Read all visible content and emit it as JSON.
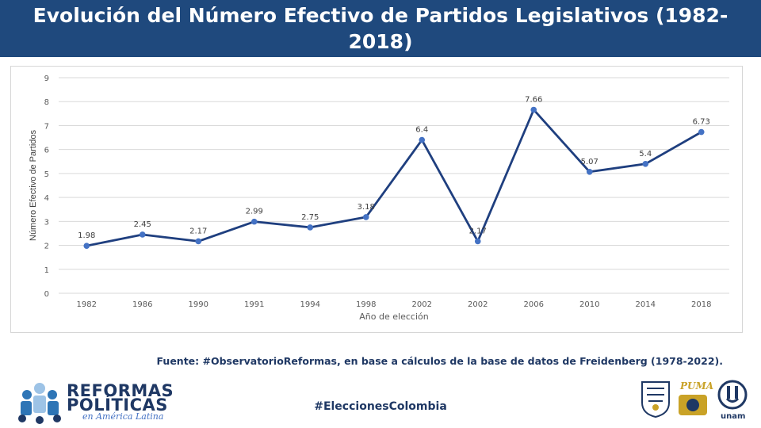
{
  "header": {
    "title": "Evolución del Número Efectivo de Partidos Legislativos (1982-2018)"
  },
  "chart_data": {
    "type": "line",
    "title": "",
    "xlabel": "Año de elección",
    "ylabel": "Número Efectivo de Partidos",
    "ylim": [
      0,
      9
    ],
    "yticks": [
      0,
      1,
      2,
      3,
      4,
      5,
      6,
      7,
      8,
      9
    ],
    "grid": true,
    "categories": [
      "1982",
      "1986",
      "1990",
      "1991",
      "1994",
      "1998",
      "2002",
      "2002",
      "2006",
      "2010",
      "2014",
      "2018"
    ],
    "series": [
      {
        "name": "",
        "color": "#1f3f7f",
        "values": [
          1.98,
          2.45,
          2.17,
          2.99,
          2.75,
          3.18,
          6.4,
          2.17,
          7.66,
          5.07,
          5.4,
          6.73
        ],
        "labels": [
          "1.98",
          "2.45",
          "2.17",
          "2.99",
          "2.75",
          "3.18",
          "6.4",
          "2.17",
          "7.66",
          "5.07",
          "5.4",
          "6.73"
        ]
      }
    ]
  },
  "footer": {
    "source": "Fuente: #ObservatorioReformas, en base a cálculos de la base de datos de Freidenberg (1978-2022).",
    "hashtag": "#EleccionesColombia",
    "logo_left_line1": "REFORMAS",
    "logo_left_line2": "POLÍTICAS",
    "logo_left_line3": "en América Latina",
    "logo_puma_text": "PUMA",
    "logo_unam_text": "unam"
  }
}
